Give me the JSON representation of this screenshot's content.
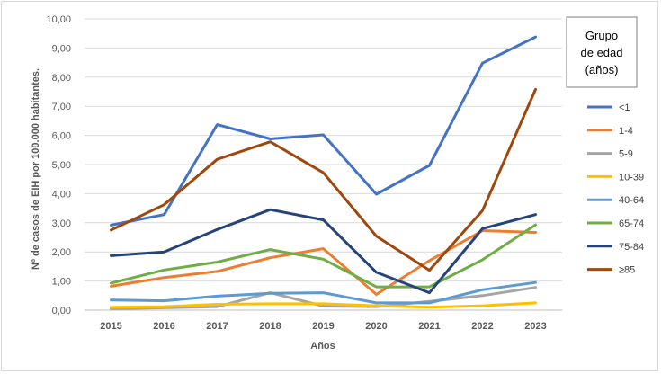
{
  "chart_data": {
    "type": "line",
    "categories": [
      "2015",
      "2016",
      "2017",
      "2018",
      "2019",
      "2020",
      "2021",
      "2022",
      "2023"
    ],
    "xlabel": "Años",
    "ylabel": "Nº de casos de EIH por 100.000 habitantes.",
    "ylim": [
      0,
      10
    ],
    "yticks": [
      "0,00",
      "1,00",
      "2,00",
      "3,00",
      "4,00",
      "5,00",
      "6,00",
      "7,00",
      "8,00",
      "9,00",
      "10,00"
    ],
    "grid": true,
    "legend": {
      "placement": "right",
      "title_lines": [
        "Grupo",
        "de edad",
        "(años)"
      ]
    },
    "series": [
      {
        "name": "<1",
        "color": "#4472C4",
        "values": [
          2.92,
          3.28,
          6.37,
          5.88,
          6.02,
          3.98,
          4.97,
          8.48,
          9.38
        ]
      },
      {
        "name": "1-4",
        "color": "#ED7D31",
        "values": [
          0.82,
          1.12,
          1.33,
          1.8,
          2.11,
          0.54,
          1.7,
          2.73,
          2.67
        ]
      },
      {
        "name": "5-9",
        "color": "#A5A5A5",
        "values": [
          0.05,
          0.08,
          0.12,
          0.6,
          0.14,
          0.12,
          0.3,
          0.5,
          0.78
        ]
      },
      {
        "name": "10-39",
        "color": "#FFC000",
        "values": [
          0.1,
          0.12,
          0.2,
          0.22,
          0.22,
          0.15,
          0.1,
          0.15,
          0.25
        ]
      },
      {
        "name": "40-64",
        "color": "#5B9BD5",
        "values": [
          0.35,
          0.32,
          0.48,
          0.58,
          0.6,
          0.25,
          0.25,
          0.7,
          0.95
        ]
      },
      {
        "name": "65-74",
        "color": "#70AD47",
        "values": [
          0.93,
          1.38,
          1.65,
          2.08,
          1.75,
          0.8,
          0.8,
          1.73,
          2.93
        ]
      },
      {
        "name": "75-84",
        "color": "#264478",
        "values": [
          1.87,
          2.0,
          2.77,
          3.45,
          3.1,
          1.3,
          0.6,
          2.8,
          3.28
        ]
      },
      {
        "name": "≥85",
        "color": "#9E480E",
        "values": [
          2.75,
          3.62,
          5.18,
          5.78,
          4.72,
          2.54,
          1.37,
          3.42,
          7.58
        ]
      }
    ]
  }
}
